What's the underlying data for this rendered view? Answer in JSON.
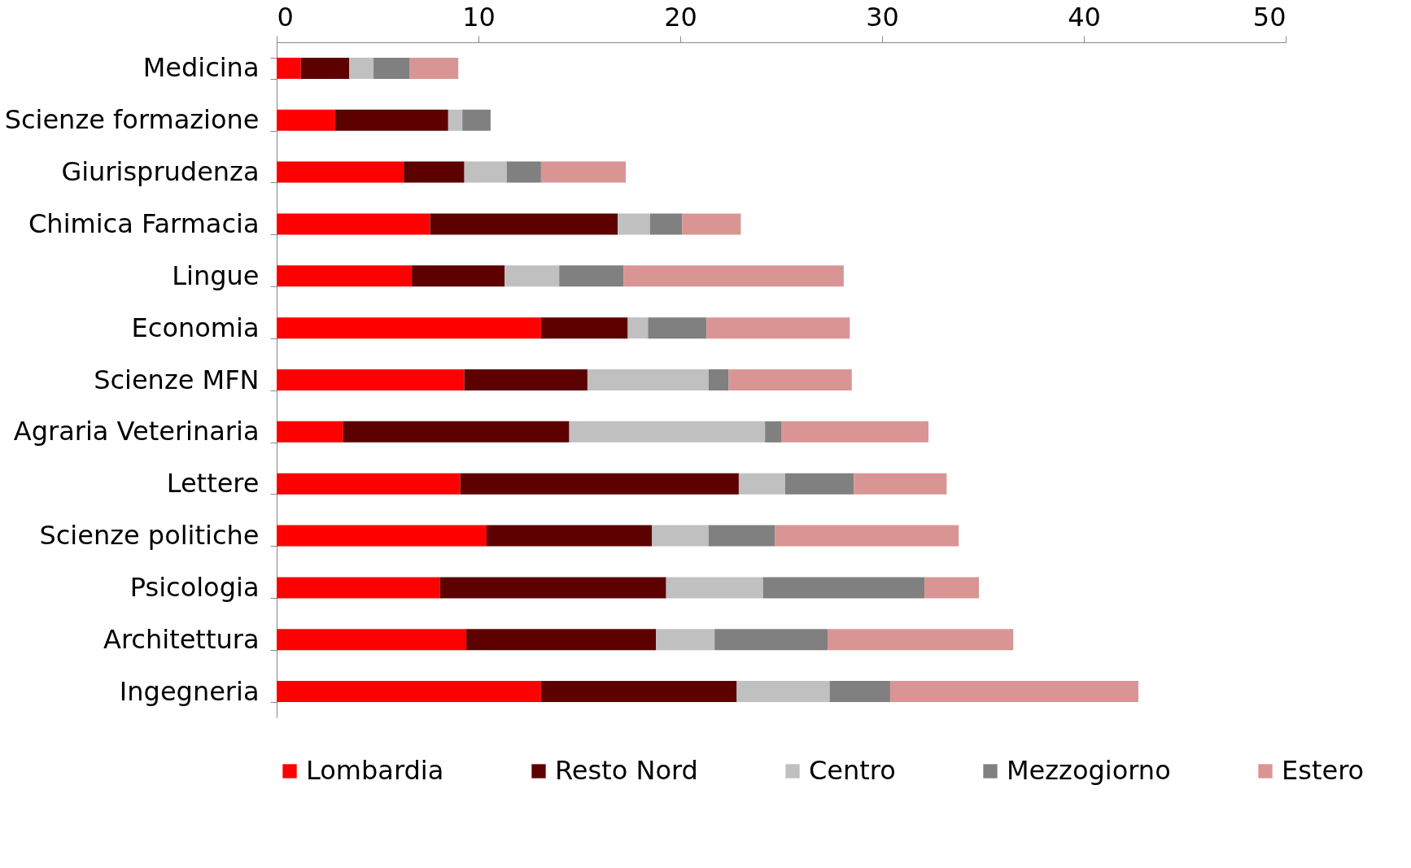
{
  "chart_data": {
    "type": "bar",
    "orientation": "horizontal",
    "stacked": true,
    "categories": [
      "Medicina",
      "Scienze formazione",
      "Giurisprudenza",
      "Chimica Farmacia",
      "Lingue",
      "Economia",
      "Scienze MFN",
      "Agraria Veterinaria",
      "Lettere",
      "Scienze politiche",
      "Psicologia",
      "Architettura",
      "Ingegneria"
    ],
    "series": [
      {
        "name": "Lombardia",
        "color": "#ff0000",
        "values": [
          1.2,
          2.9,
          6.3,
          7.6,
          6.7,
          13.1,
          9.3,
          3.3,
          9.1,
          10.4,
          8.1,
          9.4,
          13.1
        ]
      },
      {
        "name": "Resto Nord",
        "color": "#5c0000",
        "values": [
          2.4,
          5.6,
          3.0,
          9.3,
          4.6,
          4.3,
          6.1,
          11.2,
          13.8,
          8.2,
          11.2,
          9.4,
          9.7
        ]
      },
      {
        "name": "Centro",
        "color": "#c0c0c0",
        "values": [
          1.2,
          0.7,
          2.1,
          1.6,
          2.7,
          1.0,
          6.0,
          9.7,
          2.3,
          2.8,
          4.8,
          2.9,
          4.6
        ]
      },
      {
        "name": "Mezzogiorno",
        "color": "#808080",
        "values": [
          1.8,
          1.4,
          1.7,
          1.6,
          3.2,
          2.9,
          1.0,
          0.8,
          3.4,
          3.3,
          8.0,
          5.6,
          3.0
        ]
      },
      {
        "name": "Estero",
        "color": "#d99594",
        "values": [
          2.4,
          0,
          4.2,
          2.9,
          10.9,
          7.1,
          6.1,
          7.3,
          4.6,
          9.1,
          2.7,
          9.2,
          12.3
        ]
      }
    ],
    "xlim": [
      0,
      50
    ],
    "xticks": [
      0,
      10,
      20,
      30,
      40,
      50
    ],
    "grid": false,
    "legend": "bottom"
  }
}
